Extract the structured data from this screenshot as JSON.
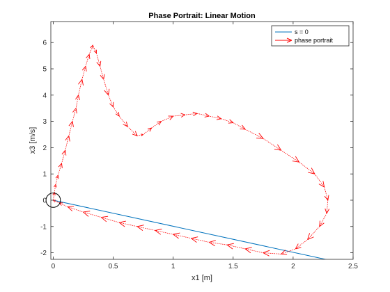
{
  "chart_data": {
    "type": "line",
    "title": "Phase Portrait: Linear Motion",
    "xlabel": "x1 [m]",
    "ylabel": "x3 [m/s]",
    "xlim": [
      -0.02,
      2.5
    ],
    "ylim": [
      -2.25,
      6.8
    ],
    "x_ticks": [
      0,
      0.5,
      1,
      1.5,
      2,
      2.5
    ],
    "x_tick_labels": [
      "0",
      "0.5",
      "1",
      "1.5",
      "2",
      "2.5"
    ],
    "y_ticks": [
      -2,
      -1,
      0,
      1,
      2,
      3,
      4,
      5,
      6
    ],
    "y_tick_labels": [
      "-2",
      "-1",
      "0",
      "1",
      "2",
      "3",
      "4",
      "5",
      "6"
    ],
    "grid": false,
    "box": true,
    "legend_position": "top-right",
    "series": [
      {
        "name": "s = 0",
        "kind": "line",
        "color": "#0072BD",
        "x": [
          0,
          2.3
        ],
        "y": [
          0,
          -2.28
        ]
      },
      {
        "name": "phase portrait",
        "kind": "quiver",
        "color": "#FF0000",
        "x": [
          0.0,
          0.01,
          0.02,
          0.04,
          0.07,
          0.1,
          0.13,
          0.16,
          0.19,
          0.21,
          0.24,
          0.27,
          0.3,
          0.33,
          0.36,
          0.39,
          0.42,
          0.46,
          0.5,
          0.55,
          0.62,
          0.7,
          0.75,
          0.82,
          0.9,
          1.0,
          1.1,
          1.2,
          1.3,
          1.4,
          1.5,
          1.6,
          1.75,
          1.9,
          2.05,
          2.18,
          2.26,
          2.29,
          2.28,
          2.22,
          2.12,
          2.02,
          1.9,
          1.75,
          1.6,
          1.45,
          1.3,
          1.15,
          1.0,
          0.85,
          0.7,
          0.55,
          0.4,
          0.25,
          0.12,
          0.05,
          0.0
        ],
        "y": [
          0.0,
          0.3,
          0.6,
          0.95,
          1.4,
          1.9,
          2.45,
          3.0,
          3.5,
          4.0,
          4.6,
          5.1,
          5.55,
          5.9,
          5.6,
          5.1,
          4.6,
          4.0,
          3.55,
          3.2,
          2.8,
          2.45,
          2.5,
          2.75,
          3.0,
          3.2,
          3.25,
          3.3,
          3.2,
          3.1,
          2.95,
          2.7,
          2.35,
          1.9,
          1.45,
          1.0,
          0.5,
          0.0,
          -0.5,
          -1.0,
          -1.5,
          -1.85,
          -2.05,
          -2.0,
          -1.85,
          -1.7,
          -1.6,
          -1.45,
          -1.3,
          -1.15,
          -1.0,
          -0.85,
          -0.65,
          -0.45,
          -0.25,
          -0.1,
          0.0
        ]
      }
    ],
    "marker": {
      "kind": "circle",
      "color": "#000000",
      "center": [
        0.0,
        0.0
      ],
      "radius_x": 0.06
    }
  }
}
